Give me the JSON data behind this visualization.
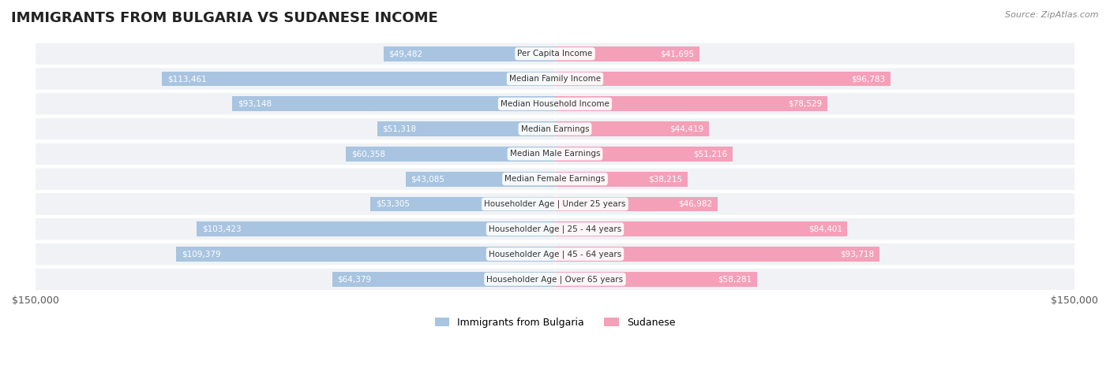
{
  "title": "IMMIGRANTS FROM BULGARIA VS SUDANESE INCOME",
  "source": "Source: ZipAtlas.com",
  "categories": [
    "Per Capita Income",
    "Median Family Income",
    "Median Household Income",
    "Median Earnings",
    "Median Male Earnings",
    "Median Female Earnings",
    "Householder Age | Under 25 years",
    "Householder Age | 25 - 44 years",
    "Householder Age | 45 - 64 years",
    "Householder Age | Over 65 years"
  ],
  "bulgaria_values": [
    49482,
    113461,
    93148,
    51318,
    60358,
    43085,
    53305,
    103423,
    109379,
    64379
  ],
  "sudanese_values": [
    41695,
    96783,
    78529,
    44419,
    51216,
    38215,
    46982,
    84401,
    93718,
    58281
  ],
  "bulgaria_color": "#a8c4e0",
  "bulgaria_dark_color": "#7bafd4",
  "sudanese_color": "#f4a0b8",
  "sudanese_dark_color": "#f07090",
  "max_value": 150000,
  "bg_color": "#ffffff",
  "row_bg": "#f0f0f0",
  "label_color_dark": "#555555",
  "label_color_white": "#ffffff",
  "legend_bulgaria": "Immigrants from Bulgaria",
  "legend_sudanese": "Sudanese"
}
